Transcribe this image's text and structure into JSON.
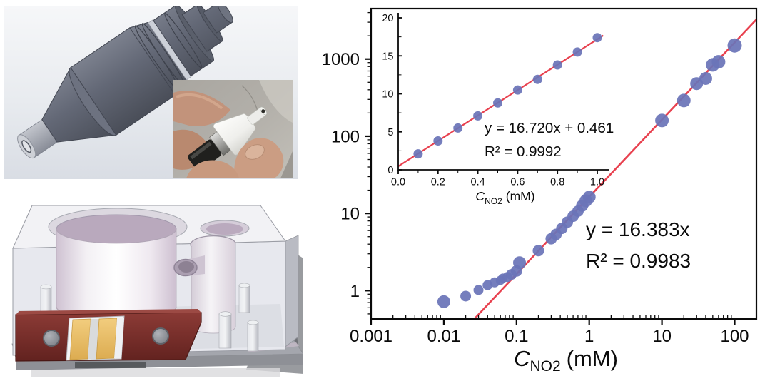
{
  "figure": {
    "description_names": {
      "top_left": "sensor-cad-render",
      "inset_photo": "probe-hand-photo",
      "bottom_left": "flow-cell-cad-render",
      "right": "calibration-plot"
    },
    "colors": {
      "marker_blue": "#6a74b8",
      "fit_red": "#e8414f",
      "axis_black": "#0a0a0a",
      "cad_gray": "#5d6270",
      "clamp_maroon": "#7b2d28",
      "electrode_gold": "#ecc36d"
    }
  },
  "chart_data": [
    {
      "id": "main-log-calibration",
      "type": "scatter",
      "xscale": "log",
      "yscale": "log",
      "xlim": [
        0.001,
        200
      ],
      "ylim": [
        0.43,
        4500
      ],
      "xticks": [
        0.001,
        0.01,
        0.1,
        1,
        10,
        100
      ],
      "xtick_labels": [
        "0.001",
        "0.01",
        "0.1",
        "1",
        "10",
        "100"
      ],
      "yticks": [
        1,
        10,
        100,
        1000
      ],
      "ytick_labels": [
        "1",
        "10",
        "100",
        "1000"
      ],
      "xlabel": {
        "symbol": "C",
        "subscript": "NO2",
        "suffix": "(mM)"
      },
      "grid": false,
      "legend": "none",
      "marker_color": "#6a74b8",
      "fit_line": {
        "equation": "y = 16.383x",
        "r_squared": "R² = 0.9983",
        "slope": 16.383,
        "intercept": 0,
        "color": "#e8414f"
      },
      "points": [
        [
          0.01,
          0.72,
          9
        ],
        [
          0.02,
          0.85,
          7.5
        ],
        [
          0.03,
          1.02,
          7
        ],
        [
          0.04,
          1.18,
          7
        ],
        [
          0.05,
          1.28,
          7
        ],
        [
          0.06,
          1.36,
          6.5
        ],
        [
          0.065,
          1.45,
          6.5
        ],
        [
          0.075,
          1.5,
          7
        ],
        [
          0.085,
          1.62,
          7.5
        ],
        [
          0.1,
          1.8,
          8
        ],
        [
          0.11,
          2.3,
          9
        ],
        [
          0.2,
          3.3,
          8
        ],
        [
          0.3,
          4.7,
          8
        ],
        [
          0.35,
          5.35,
          8
        ],
        [
          0.42,
          6.4,
          8
        ],
        [
          0.5,
          7.7,
          8
        ],
        [
          0.6,
          9.2,
          8
        ],
        [
          0.7,
          10.7,
          8
        ],
        [
          0.8,
          12.6,
          8.5
        ],
        [
          0.9,
          14.6,
          9
        ],
        [
          1.0,
          16.3,
          9
        ],
        [
          10,
          160,
          9.5
        ],
        [
          20,
          290,
          9.5
        ],
        [
          30,
          480,
          9
        ],
        [
          40,
          560,
          9
        ],
        [
          50,
          840,
          9.5
        ],
        [
          60,
          920,
          9.5
        ],
        [
          100,
          1500,
          10
        ]
      ]
    },
    {
      "id": "inset-linear-calibration",
      "type": "scatter",
      "xscale": "linear",
      "yscale": "linear",
      "xlim": [
        0,
        1.05
      ],
      "ylim": [
        0,
        20
      ],
      "xticks": [
        0,
        0.2,
        0.4,
        0.6,
        0.8,
        1.0
      ],
      "xtick_labels": [
        "0.0",
        "0.2",
        "0.4",
        "0.6",
        "0.8",
        "1.0"
      ],
      "yticks": [
        0,
        5,
        10,
        15,
        20
      ],
      "ytick_labels": [
        "0",
        "5",
        "10",
        "15",
        "20"
      ],
      "xlabel": {
        "symbol": "C",
        "subscript": "NO2",
        "suffix": "(mM)"
      },
      "grid": false,
      "legend": "none",
      "marker_color": "#6a74b8",
      "fit_line": {
        "equation": "y = 16.720x + 0.461",
        "r_squared": "R² = 0.9992",
        "slope": 16.72,
        "intercept": 0.461,
        "color": "#e8414f"
      },
      "points": [
        [
          0.1,
          2.1
        ],
        [
          0.2,
          3.8
        ],
        [
          0.3,
          5.5
        ],
        [
          0.4,
          7.1
        ],
        [
          0.5,
          8.8
        ],
        [
          0.6,
          10.5
        ],
        [
          0.7,
          11.9
        ],
        [
          0.8,
          13.8
        ],
        [
          0.9,
          15.5
        ],
        [
          1.0,
          17.4
        ]
      ]
    }
  ]
}
